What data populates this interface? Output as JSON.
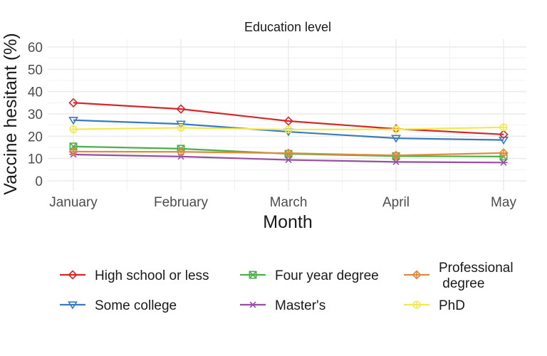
{
  "chart_data": {
    "type": "line",
    "title": "Education level",
    "xlabel": "Month",
    "ylabel": "Vaccine hesitant (%)",
    "categories": [
      "January",
      "February",
      "March",
      "April",
      "May"
    ],
    "ylim": [
      0,
      60
    ],
    "yticks": [
      0,
      10,
      20,
      30,
      40,
      50,
      60
    ],
    "grid": true,
    "legend_position": "bottom",
    "series": [
      {
        "name": "High school or less",
        "color": "#d62728",
        "marker": "diamond",
        "values": [
          35,
          32.2,
          26.8,
          23.3,
          20.8
        ]
      },
      {
        "name": "Some college",
        "color": "#3a7bbf",
        "marker": "triangle-down",
        "values": [
          27.2,
          25.5,
          22,
          19.1,
          18.3
        ]
      },
      {
        "name": "Four year degree",
        "color": "#4daf4a",
        "marker": "square-x",
        "values": [
          15.4,
          14.4,
          12.1,
          11.1,
          10.9
        ]
      },
      {
        "name": "Master's",
        "color": "#984ea3",
        "marker": "asterisk",
        "values": [
          11.8,
          10.9,
          9.4,
          8.5,
          8.2
        ]
      },
      {
        "name": "Professional\n degree",
        "color": "#e08a3c",
        "marker": "diamond-plus",
        "values": [
          13.1,
          13,
          12.4,
          11.4,
          12.5
        ]
      },
      {
        "name": "PhD",
        "color": "#f2e94e",
        "marker": "circle-plus",
        "values": [
          23.1,
          23.8,
          23,
          23.1,
          24
        ]
      }
    ]
  }
}
